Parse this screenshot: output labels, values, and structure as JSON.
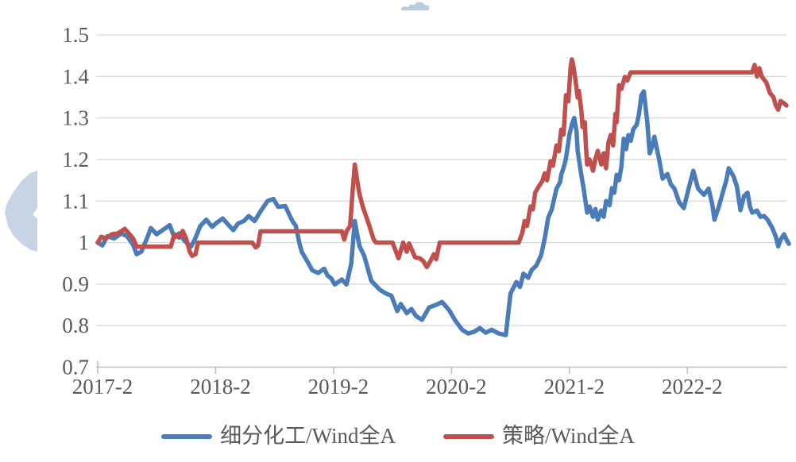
{
  "chart_data": {
    "type": "line",
    "title": "",
    "grid": "horizontal",
    "legend_position": "bottom-center",
    "colors": {
      "grid_line": "#d9d9d9",
      "axis_line": "#bfbfbf",
      "tick_label": "#595959"
    },
    "x_axis": {
      "min": 2017.08,
      "max": 2022.92,
      "ticks": [
        {
          "label": "2017-2",
          "t": 2017.08
        },
        {
          "label": "2018-2",
          "t": 2018.08
        },
        {
          "label": "2019-2",
          "t": 2019.08
        },
        {
          "label": "2020-2",
          "t": 2020.08
        },
        {
          "label": "2021-2",
          "t": 2021.08
        },
        {
          "label": "2022-2",
          "t": 2022.08
        }
      ]
    },
    "y_axis": {
      "min": 0.7,
      "max": 1.5,
      "ticks": [
        {
          "label": "1.5",
          "v": 1.5
        },
        {
          "label": "1.4",
          "v": 1.4
        },
        {
          "label": "1.3",
          "v": 1.3
        },
        {
          "label": "1.2",
          "v": 1.2
        },
        {
          "label": "1.1",
          "v": 1.1
        },
        {
          "label": "1",
          "v": 1.0
        },
        {
          "label": "0.9",
          "v": 0.9
        },
        {
          "label": "0.8",
          "v": 0.8
        },
        {
          "label": "0.7",
          "v": 0.7
        }
      ]
    },
    "series": [
      {
        "name": "细分化工/Wind全A",
        "color": "#4a7cba",
        "points": [
          [
            2017.08,
            1.0
          ],
          [
            2017.12,
            0.993
          ],
          [
            2017.16,
            1.015
          ],
          [
            2017.22,
            1.01
          ],
          [
            2017.28,
            1.022
          ],
          [
            2017.33,
            1.015
          ],
          [
            2017.38,
            0.995
          ],
          [
            2017.41,
            0.972
          ],
          [
            2017.45,
            0.978
          ],
          [
            2017.5,
            1.012
          ],
          [
            2017.53,
            1.035
          ],
          [
            2017.58,
            1.02
          ],
          [
            2017.63,
            1.03
          ],
          [
            2017.69,
            1.042
          ],
          [
            2017.73,
            1.012
          ],
          [
            2017.77,
            1.022
          ],
          [
            2017.82,
            1.003
          ],
          [
            2017.87,
            0.99
          ],
          [
            2017.9,
            1.005
          ],
          [
            2017.95,
            1.04
          ],
          [
            2018.0,
            1.055
          ],
          [
            2018.05,
            1.038
          ],
          [
            2018.09,
            1.048
          ],
          [
            2018.14,
            1.058
          ],
          [
            2018.19,
            1.042
          ],
          [
            2018.23,
            1.03
          ],
          [
            2018.27,
            1.046
          ],
          [
            2018.32,
            1.052
          ],
          [
            2018.36,
            1.064
          ],
          [
            2018.41,
            1.052
          ],
          [
            2018.46,
            1.075
          ],
          [
            2018.52,
            1.1
          ],
          [
            2018.57,
            1.105
          ],
          [
            2018.61,
            1.086
          ],
          [
            2018.67,
            1.088
          ],
          [
            2018.73,
            1.052
          ],
          [
            2018.76,
            1.04
          ],
          [
            2018.79,
            0.998
          ],
          [
            2018.81,
            0.978
          ],
          [
            2018.86,
            0.953
          ],
          [
            2018.9,
            0.933
          ],
          [
            2018.95,
            0.927
          ],
          [
            2019.0,
            0.937
          ],
          [
            2019.03,
            0.92
          ],
          [
            2019.06,
            0.914
          ],
          [
            2019.09,
            0.899
          ],
          [
            2019.15,
            0.911
          ],
          [
            2019.19,
            0.899
          ],
          [
            2019.23,
            0.95
          ],
          [
            2019.26,
            1.052
          ],
          [
            2019.28,
            1.02
          ],
          [
            2019.3,
            0.991
          ],
          [
            2019.34,
            0.968
          ],
          [
            2019.37,
            0.937
          ],
          [
            2019.4,
            0.908
          ],
          [
            2019.47,
            0.887
          ],
          [
            2019.52,
            0.878
          ],
          [
            2019.57,
            0.872
          ],
          [
            2019.62,
            0.835
          ],
          [
            2019.65,
            0.852
          ],
          [
            2019.7,
            0.83
          ],
          [
            2019.74,
            0.84
          ],
          [
            2019.78,
            0.823
          ],
          [
            2019.83,
            0.814
          ],
          [
            2019.89,
            0.844
          ],
          [
            2019.95,
            0.85
          ],
          [
            2020.0,
            0.857
          ],
          [
            2020.06,
            0.837
          ],
          [
            2020.11,
            0.813
          ],
          [
            2020.17,
            0.79
          ],
          [
            2020.22,
            0.781
          ],
          [
            2020.27,
            0.785
          ],
          [
            2020.32,
            0.794
          ],
          [
            2020.37,
            0.783
          ],
          [
            2020.42,
            0.79
          ],
          [
            2020.48,
            0.781
          ],
          [
            2020.54,
            0.777
          ],
          [
            2020.58,
            0.877
          ],
          [
            2020.63,
            0.905
          ],
          [
            2020.66,
            0.893
          ],
          [
            2020.69,
            0.925
          ],
          [
            2020.73,
            0.915
          ],
          [
            2020.76,
            0.934
          ],
          [
            2020.8,
            0.945
          ],
          [
            2020.84,
            0.97
          ],
          [
            2020.87,
            1.01
          ],
          [
            2020.9,
            1.06
          ],
          [
            2020.93,
            1.08
          ],
          [
            2020.97,
            1.13
          ],
          [
            2021.0,
            1.145
          ],
          [
            2021.01,
            1.163
          ],
          [
            2021.03,
            1.18
          ],
          [
            2021.05,
            1.202
          ],
          [
            2021.08,
            1.26
          ],
          [
            2021.1,
            1.284
          ],
          [
            2021.12,
            1.3
          ],
          [
            2021.14,
            1.268
          ],
          [
            2021.15,
            1.22
          ],
          [
            2021.18,
            1.163
          ],
          [
            2021.2,
            1.13
          ],
          [
            2021.23,
            1.072
          ],
          [
            2021.25,
            1.087
          ],
          [
            2021.28,
            1.062
          ],
          [
            2021.3,
            1.081
          ],
          [
            2021.32,
            1.055
          ],
          [
            2021.35,
            1.077
          ],
          [
            2021.37,
            1.062
          ],
          [
            2021.39,
            1.1
          ],
          [
            2021.42,
            1.09
          ],
          [
            2021.44,
            1.131
          ],
          [
            2021.46,
            1.12
          ],
          [
            2021.48,
            1.163
          ],
          [
            2021.5,
            1.15
          ],
          [
            2021.52,
            1.183
          ],
          [
            2021.54,
            1.25
          ],
          [
            2021.56,
            1.225
          ],
          [
            2021.58,
            1.259
          ],
          [
            2021.6,
            1.245
          ],
          [
            2021.62,
            1.272
          ],
          [
            2021.65,
            1.284
          ],
          [
            2021.67,
            1.31
          ],
          [
            2021.69,
            1.355
          ],
          [
            2021.71,
            1.364
          ],
          [
            2021.74,
            1.29
          ],
          [
            2021.76,
            1.215
          ],
          [
            2021.78,
            1.23
          ],
          [
            2021.8,
            1.255
          ],
          [
            2021.84,
            1.2
          ],
          [
            2021.87,
            1.154
          ],
          [
            2021.91,
            1.165
          ],
          [
            2021.94,
            1.14
          ],
          [
            2021.97,
            1.13
          ],
          [
            2022.01,
            1.097
          ],
          [
            2022.05,
            1.083
          ],
          [
            2022.09,
            1.13
          ],
          [
            2022.13,
            1.173
          ],
          [
            2022.17,
            1.13
          ],
          [
            2022.22,
            1.115
          ],
          [
            2022.26,
            1.13
          ],
          [
            2022.29,
            1.093
          ],
          [
            2022.31,
            1.055
          ],
          [
            2022.35,
            1.09
          ],
          [
            2022.38,
            1.12
          ],
          [
            2022.41,
            1.15
          ],
          [
            2022.43,
            1.179
          ],
          [
            2022.47,
            1.16
          ],
          [
            2022.5,
            1.135
          ],
          [
            2022.53,
            1.078
          ],
          [
            2022.56,
            1.112
          ],
          [
            2022.59,
            1.12
          ],
          [
            2022.61,
            1.087
          ],
          [
            2022.63,
            1.072
          ],
          [
            2022.67,
            1.077
          ],
          [
            2022.7,
            1.062
          ],
          [
            2022.73,
            1.064
          ],
          [
            2022.76,
            1.055
          ],
          [
            2022.8,
            1.035
          ],
          [
            2022.83,
            1.014
          ],
          [
            2022.85,
            0.991
          ],
          [
            2022.87,
            1.007
          ],
          [
            2022.9,
            1.02
          ],
          [
            2022.92,
            1.007
          ],
          [
            2022.94,
            0.997
          ]
        ]
      },
      {
        "name": "策略/Wind全A",
        "color": "#c0504d",
        "points": [
          [
            2017.08,
            1.0
          ],
          [
            2017.11,
            1.014
          ],
          [
            2017.15,
            1.01
          ],
          [
            2017.2,
            1.02
          ],
          [
            2017.25,
            1.022
          ],
          [
            2017.31,
            1.033
          ],
          [
            2017.35,
            1.02
          ],
          [
            2017.38,
            1.01
          ],
          [
            2017.41,
            0.99
          ],
          [
            2017.7,
            0.99
          ],
          [
            2017.73,
            1.02
          ],
          [
            2017.77,
            1.012
          ],
          [
            2017.8,
            1.028
          ],
          [
            2017.83,
            1.01
          ],
          [
            2017.86,
            0.978
          ],
          [
            2017.88,
            0.968
          ],
          [
            2017.91,
            0.972
          ],
          [
            2017.93,
            1.0
          ],
          [
            2018.39,
            1.0
          ],
          [
            2018.42,
            0.988
          ],
          [
            2018.44,
            0.993
          ],
          [
            2018.46,
            1.027
          ],
          [
            2019.15,
            1.027
          ],
          [
            2019.17,
            1.007
          ],
          [
            2019.19,
            1.027
          ],
          [
            2019.22,
            1.04
          ],
          [
            2019.24,
            1.12
          ],
          [
            2019.26,
            1.188
          ],
          [
            2019.28,
            1.15
          ],
          [
            2019.3,
            1.116
          ],
          [
            2019.33,
            1.084
          ],
          [
            2019.35,
            1.068
          ],
          [
            2019.38,
            1.043
          ],
          [
            2019.42,
            1.007
          ],
          [
            2019.44,
            1.0
          ],
          [
            2019.58,
            1.0
          ],
          [
            2019.6,
            0.985
          ],
          [
            2019.63,
            0.962
          ],
          [
            2019.67,
            1.0
          ],
          [
            2019.7,
            0.978
          ],
          [
            2019.72,
            0.998
          ],
          [
            2019.77,
            0.965
          ],
          [
            2019.81,
            0.962
          ],
          [
            2019.84,
            0.956
          ],
          [
            2019.87,
            0.941
          ],
          [
            2019.9,
            0.955
          ],
          [
            2019.93,
            0.972
          ],
          [
            2019.95,
            0.96
          ],
          [
            2019.98,
            1.0
          ],
          [
            2020.65,
            1.0
          ],
          [
            2020.68,
            1.024
          ],
          [
            2020.7,
            1.052
          ],
          [
            2020.72,
            1.04
          ],
          [
            2020.75,
            1.087
          ],
          [
            2020.77,
            1.08
          ],
          [
            2020.79,
            1.121
          ],
          [
            2020.82,
            1.135
          ],
          [
            2020.85,
            1.148
          ],
          [
            2020.87,
            1.167
          ],
          [
            2020.89,
            1.15
          ],
          [
            2020.92,
            1.196
          ],
          [
            2020.94,
            1.185
          ],
          [
            2020.97,
            1.234
          ],
          [
            2020.99,
            1.22
          ],
          [
            2021.01,
            1.272
          ],
          [
            2021.03,
            1.26
          ],
          [
            2021.05,
            1.355
          ],
          [
            2021.07,
            1.34
          ],
          [
            2021.09,
            1.422
          ],
          [
            2021.1,
            1.441
          ],
          [
            2021.11,
            1.43
          ],
          [
            2021.13,
            1.393
          ],
          [
            2021.15,
            1.349
          ],
          [
            2021.16,
            1.365
          ],
          [
            2021.18,
            1.32
          ],
          [
            2021.19,
            1.278
          ],
          [
            2021.21,
            1.29
          ],
          [
            2021.22,
            1.23
          ],
          [
            2021.23,
            1.188
          ],
          [
            2021.25,
            1.2
          ],
          [
            2021.28,
            1.173
          ],
          [
            2021.3,
            1.202
          ],
          [
            2021.32,
            1.221
          ],
          [
            2021.35,
            1.188
          ],
          [
            2021.37,
            1.215
          ],
          [
            2021.39,
            1.179
          ],
          [
            2021.41,
            1.24
          ],
          [
            2021.43,
            1.259
          ],
          [
            2021.45,
            1.234
          ],
          [
            2021.47,
            1.31
          ],
          [
            2021.48,
            1.29
          ],
          [
            2021.5,
            1.379
          ],
          [
            2021.52,
            1.37
          ],
          [
            2021.55,
            1.399
          ],
          [
            2021.57,
            1.39
          ],
          [
            2021.6,
            1.41
          ],
          [
            2022.63,
            1.41
          ],
          [
            2022.65,
            1.428
          ],
          [
            2022.67,
            1.4
          ],
          [
            2022.69,
            1.42
          ],
          [
            2022.71,
            1.4
          ],
          [
            2022.75,
            1.385
          ],
          [
            2022.78,
            1.36
          ],
          [
            2022.81,
            1.35
          ],
          [
            2022.83,
            1.33
          ],
          [
            2022.85,
            1.32
          ],
          [
            2022.87,
            1.341
          ],
          [
            2022.9,
            1.335
          ],
          [
            2022.92,
            1.33
          ]
        ]
      }
    ],
    "watermarks": {
      "left_color": "#c6d4e6",
      "top_color": "#b9cbdf"
    }
  }
}
